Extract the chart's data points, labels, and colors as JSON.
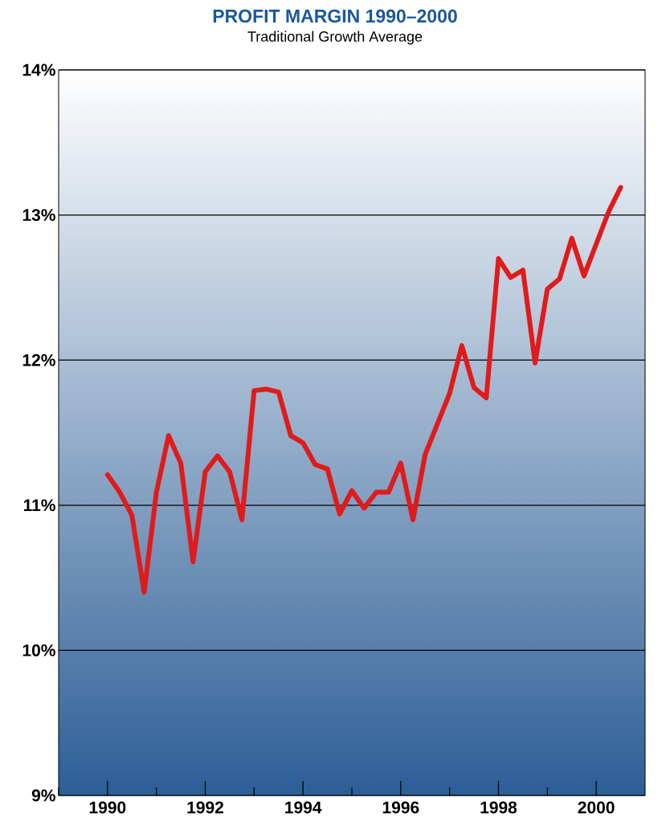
{
  "chart_data": {
    "type": "line",
    "title": "PROFIT MARGIN 1990–2000",
    "subtitle": "Traditional Growth Average",
    "x": [
      1990,
      1990.25,
      1990.5,
      1990.75,
      1991,
      1991.25,
      1991.5,
      1991.75,
      1992,
      1992.25,
      1992.5,
      1992.75,
      1993,
      1993.25,
      1993.5,
      1993.75,
      1994,
      1994.25,
      1994.5,
      1994.75,
      1995,
      1995.25,
      1995.5,
      1995.75,
      1996,
      1996.25,
      1996.5,
      1996.75,
      1997,
      1997.25,
      1997.5,
      1997.75,
      1998,
      1998.25,
      1998.5,
      1998.75,
      1999,
      1999.25,
      1999.5,
      1999.75,
      2000,
      2000.25,
      2000.5
    ],
    "series": [
      {
        "color": "#e01b1b",
        "values": [
          11.21,
          11.09,
          10.93,
          10.4,
          11.09,
          11.48,
          11.29,
          10.61,
          11.23,
          11.34,
          11.23,
          10.9,
          11.79,
          11.8,
          11.78,
          11.48,
          11.43,
          11.28,
          11.25,
          10.94,
          11.1,
          10.98,
          11.09,
          11.09,
          11.29,
          10.9,
          11.35,
          11.56,
          11.77,
          12.1,
          11.81,
          11.74,
          12.7,
          12.57,
          12.62,
          11.98,
          12.49,
          12.56,
          12.84,
          12.58,
          12.8,
          13.02,
          13.19
        ]
      }
    ],
    "xlim": [
      1989,
      2001
    ],
    "ylim": [
      9,
      14
    ],
    "xticks": [
      {
        "value": 1989,
        "label": null
      },
      1990,
      {
        "value": 1991,
        "label": null
      },
      1992,
      {
        "value": 1993,
        "label": null
      },
      1994,
      {
        "value": 1995,
        "label": null
      },
      1996,
      {
        "value": 1997,
        "label": null
      },
      1998,
      {
        "value": 1999,
        "label": null
      },
      2000
    ],
    "yticks": [
      {
        "value": 9,
        "label": "9%"
      },
      {
        "value": 10,
        "label": "10%"
      },
      {
        "value": 11,
        "label": "11%"
      },
      {
        "value": 12,
        "label": "12%"
      },
      {
        "value": 13,
        "label": "13%"
      },
      {
        "value": 14,
        "label": "14%"
      }
    ],
    "grid": "y",
    "marker": "none",
    "line_style": "solid"
  }
}
